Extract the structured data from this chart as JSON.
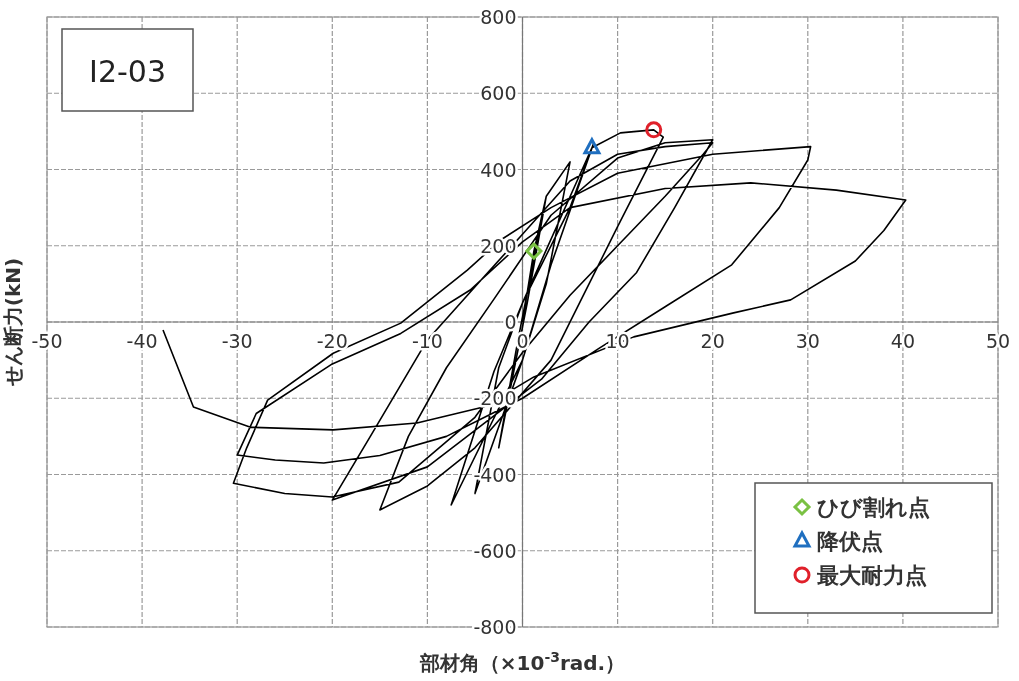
{
  "chart_data": {
    "type": "line",
    "title": "I2-03",
    "xlabel": "部材角（×10$^{-3}$rad.）",
    "ylabel": "せん断力(kN)",
    "xlim": [
      -50,
      50
    ],
    "ylim": [
      -800,
      800
    ],
    "xticks": [
      -50,
      -40,
      -30,
      -20,
      -10,
      0,
      10,
      20,
      30,
      40,
      50
    ],
    "yticks": [
      -800,
      -600,
      -400,
      -200,
      0,
      200,
      400,
      600,
      800
    ],
    "grid": true,
    "legend": "bottom right",
    "series": [
      {
        "color": "#000000",
        "marker": "none",
        "x": [
          0,
          1.2,
          2.5,
          0.5,
          -2.5,
          -0.5,
          2.5,
          5,
          2.5,
          0,
          -5,
          -2.5,
          0,
          5,
          7.5,
          3,
          0,
          -7.5,
          -3,
          0,
          7.3,
          10.3,
          12,
          13.8,
          14.8,
          10,
          6,
          3,
          -5,
          -10,
          -15,
          -12,
          -8,
          -3,
          3,
          10,
          15,
          20,
          16,
          12,
          7,
          2,
          -10,
          -20,
          -16,
          -10,
          -4,
          0,
          5,
          10,
          15,
          20,
          19,
          15,
          10,
          5,
          0,
          -5,
          -13,
          -20,
          -25,
          -30.4,
          -29,
          -26.8,
          -19.9,
          -12.8,
          -5.8,
          -2.3,
          3,
          10,
          20,
          30.3,
          30,
          27,
          22,
          15,
          8,
          0,
          -8,
          -15,
          -20.9,
          -26,
          -30,
          -28,
          -20,
          -12.8,
          -5.5,
          0,
          5,
          15,
          24,
          33,
          40.3,
          38,
          35,
          28.2,
          22.2,
          11.7,
          1.2,
          -4.1,
          -11.1,
          -19.9,
          -28.6,
          -34.6,
          -37.8
        ],
        "values": [
          0,
          186,
          330,
          50,
          -330,
          -50,
          330,
          420,
          100,
          -100,
          -450,
          -120,
          50,
          300,
          470,
          150,
          -100,
          -480,
          -130,
          50,
          457,
          496,
          500,
          504,
          485,
          250,
          50,
          -100,
          -330,
          -430,
          -493,
          -300,
          -120,
          60,
          280,
          430,
          470,
          478,
          300,
          130,
          0,
          -150,
          -380,
          -467,
          -300,
          -47,
          120,
          230,
          370,
          440,
          460,
          470,
          440,
          330,
          200,
          70,
          -80,
          -250,
          -420,
          -459,
          -450,
          -423,
          -330,
          -205,
          -82,
          -3,
          136,
          215,
          300,
          390,
          440,
          460,
          425,
          300,
          150,
          40,
          -70,
          -200,
          -300,
          -350,
          -370,
          -362,
          -349,
          -240,
          -110,
          -30,
          84,
          210,
          300,
          350,
          365,
          346,
          320,
          240,
          160,
          58,
          24,
          -39,
          -144,
          -223,
          -265,
          -283,
          -276,
          -223,
          -21
        ]
      },
      {
        "type": "scatter",
        "name": "ひび割れ点",
        "color": "#7ac143",
        "marker": "diamond",
        "x": [
          1.2
        ],
        "values": [
          186
        ]
      },
      {
        "type": "scatter",
        "name": "降伏点",
        "color": "#1f6fc0",
        "marker": "triangle",
        "x": [
          7.3
        ],
        "values": [
          457
        ]
      },
      {
        "type": "scatter",
        "name": "最大耐力点",
        "color": "#e0202a",
        "marker": "circle",
        "x": [
          13.8
        ],
        "values": [
          504
        ]
      }
    ]
  }
}
